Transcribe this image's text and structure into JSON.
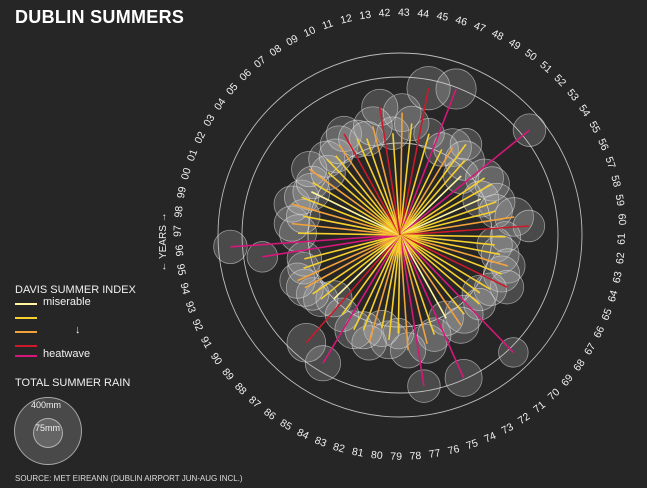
{
  "title": "DUBLIN SUMMERS",
  "legend": {
    "index_title": "DAVIS SUMMER INDEX",
    "items": [
      {
        "label": "miserable",
        "color": "#fff6a0"
      },
      {
        "label": "",
        "color": "#f5d02e"
      },
      {
        "label": "↓",
        "color": "#f2a23a"
      },
      {
        "label": "",
        "color": "#cc1a2a"
      },
      {
        "label": "heatwave",
        "color": "#d6177a"
      }
    ],
    "rain_title": "TOTAL SUMMER RAIN",
    "rain_big": "400mm",
    "rain_small": "75mm"
  },
  "source": "SOURCE: MET EIREANN (DUBLIN AIRPORT JUN-AUG INCL.)",
  "chart_data": {
    "type": "radial",
    "axis_label": "← YEARS →",
    "years": [
      "42",
      "43",
      "44",
      "45",
      "46",
      "47",
      "48",
      "49",
      "50",
      "51",
      "52",
      "53",
      "54",
      "55",
      "56",
      "57",
      "58",
      "59",
      "60",
      "61",
      "62",
      "63",
      "64",
      "65",
      "66",
      "67",
      "68",
      "69",
      "70",
      "71",
      "72",
      "73",
      "74",
      "75",
      "76",
      "77",
      "78",
      "79",
      "80",
      "81",
      "82",
      "83",
      "84",
      "85",
      "86",
      "87",
      "88",
      "89",
      "90",
      "91",
      "92",
      "93",
      "94",
      "95",
      "96",
      "97",
      "98",
      "99",
      "00",
      "01",
      "02",
      "03",
      "04",
      "05",
      "06",
      "07",
      "08",
      "09",
      "10",
      "11",
      "12",
      "13"
    ],
    "davis_index": [
      300,
      360,
      330,
      440,
      310,
      460,
      280,
      300,
      330,
      290,
      250,
      490,
      300,
      310,
      260,
      300,
      290,
      340,
      380,
      310,
      280,
      300,
      330,
      320,
      350,
      310,
      290,
      310,
      480,
      300,
      320,
      280,
      460,
      310,
      330,
      450,
      340,
      290,
      310,
      280,
      330,
      300,
      310,
      440,
      290,
      420,
      270,
      300,
      310,
      320,
      330,
      300,
      290,
      410,
      500,
      300,
      320,
      290,
      330,
      310,
      290,
      300,
      330,
      280,
      310,
      300,
      320,
      340,
      310,
      300,
      330,
      380
    ],
    "summer_rain_mm": [
      170,
      230,
      190,
      300,
      150,
      260,
      180,
      230,
      160,
      250,
      200,
      170,
      230,
      190,
      210,
      220,
      180,
      240,
      160,
      150,
      200,
      230,
      190,
      210,
      180,
      170,
      200,
      160,
      140,
      230,
      210,
      190,
      220,
      180,
      240,
      170,
      200,
      150,
      230,
      210,
      190,
      220,
      230,
      200,
      180,
      240,
      210,
      190,
      170,
      220,
      200,
      160,
      190,
      150,
      180,
      220,
      200,
      180,
      210,
      190,
      220,
      170,
      200,
      190,
      210,
      180,
      230,
      200,
      220,
      190,
      240,
      210
    ],
    "category": [
      1,
      2,
      1,
      3,
      1,
      4,
      1,
      2,
      1,
      1,
      0,
      4,
      1,
      1,
      0,
      1,
      1,
      2,
      3,
      1,
      1,
      1,
      2,
      1,
      3,
      1,
      1,
      1,
      4,
      1,
      2,
      0,
      4,
      1,
      2,
      4,
      2,
      1,
      1,
      1,
      2,
      1,
      1,
      4,
      1,
      3,
      0,
      1,
      1,
      2,
      2,
      1,
      1,
      4,
      4,
      1,
      2,
      1,
      2,
      1,
      0,
      1,
      2,
      1,
      1,
      1,
      2,
      3,
      1,
      1,
      2,
      3
    ]
  }
}
